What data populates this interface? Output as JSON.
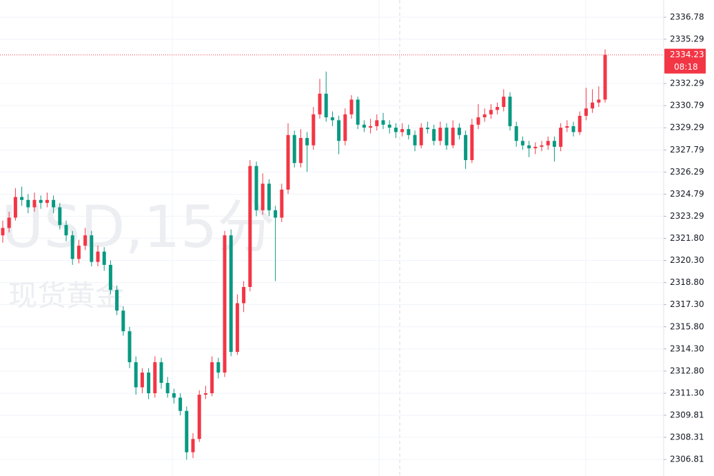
{
  "chart_data": {
    "type": "candlestick",
    "watermark": "USD,15分",
    "watermark_subtitle": "现货黄金",
    "up_color": "#f23645",
    "down_color": "#089981",
    "ylim": [
      2305.69,
      2337.95
    ],
    "yticks": [
      2336.78,
      2335.29,
      2332.29,
      2330.79,
      2329.29,
      2327.79,
      2326.29,
      2324.79,
      2323.29,
      {
        "value": 2321.8,
        "label": "2321.80"
      },
      {
        "value": 2320.3,
        "label": "2320.30"
      },
      {
        "value": 2318.8,
        "label": "2318.80"
      },
      {
        "value": 2317.3,
        "label": "2317.30"
      },
      {
        "value": 2315.8,
        "label": "2315.80"
      },
      {
        "value": 2314.3,
        "label": "2314.30"
      },
      {
        "value": 2312.8,
        "label": "2312.80"
      },
      {
        "value": 2311.3,
        "label": "2311.30"
      },
      2309.81,
      2308.31,
      2306.81
    ],
    "grid": true,
    "last_price": 2334.23,
    "countdown": "08:18",
    "ohlc": [
      [
        2322.0,
        2323.0,
        2321.5,
        2322.5
      ],
      [
        2322.5,
        2323.6,
        2322.2,
        2323.2
      ],
      [
        2323.2,
        2325.2,
        2323.0,
        2324.6
      ],
      [
        2324.6,
        2325.3,
        2324.0,
        2324.4
      ],
      [
        2324.4,
        2324.8,
        2323.5,
        2323.9
      ],
      [
        2323.9,
        2324.9,
        2323.6,
        2324.4
      ],
      [
        2324.4,
        2324.7,
        2323.8,
        2324.2
      ],
      [
        2324.2,
        2324.9,
        2323.9,
        2324.4
      ],
      [
        2324.4,
        2324.7,
        2323.5,
        2323.9
      ],
      [
        2323.9,
        2324.2,
        2322.4,
        2322.7
      ],
      [
        2322.7,
        2323.0,
        2321.6,
        2322.0
      ],
      [
        2322.0,
        2322.3,
        2320.0,
        2320.4
      ],
      [
        2320.4,
        2321.7,
        2320.1,
        2321.3
      ],
      [
        2321.3,
        2322.5,
        2321.0,
        2322.0
      ],
      [
        2322.0,
        2322.3,
        2319.9,
        2320.2
      ],
      [
        2320.2,
        2321.3,
        2319.9,
        2320.9
      ],
      [
        2320.9,
        2321.2,
        2319.6,
        2320.0
      ],
      [
        2320.0,
        2320.3,
        2318.0,
        2318.3
      ],
      [
        2318.3,
        2318.6,
        2316.6,
        2316.9
      ],
      [
        2316.9,
        2317.2,
        2315.2,
        2315.5
      ],
      [
        2315.5,
        2315.8,
        2313.0,
        2313.4
      ],
      [
        2313.4,
        2313.8,
        2311.2,
        2311.7
      ],
      [
        2311.7,
        2313.0,
        2311.3,
        2312.7
      ],
      [
        2312.7,
        2313.0,
        2310.9,
        2311.3
      ],
      [
        2311.3,
        2313.8,
        2311.0,
        2313.4
      ],
      [
        2313.4,
        2313.7,
        2311.6,
        2312.0
      ],
      [
        2312.0,
        2312.4,
        2311.0,
        2311.3
      ],
      [
        2311.3,
        2311.6,
        2310.6,
        2311.0
      ],
      [
        2311.0,
        2311.3,
        2309.8,
        2310.1
      ],
      [
        2310.1,
        2310.4,
        2306.8,
        2307.3
      ],
      [
        2307.3,
        2308.6,
        2306.9,
        2308.2
      ],
      [
        2308.2,
        2311.5,
        2308.0,
        2311.2
      ],
      [
        2311.2,
        2311.8,
        2310.9,
        2311.3
      ],
      [
        2311.3,
        2313.8,
        2311.1,
        2313.4
      ],
      [
        2313.4,
        2313.7,
        2312.3,
        2312.7
      ],
      [
        2312.7,
        2322.3,
        2312.4,
        2322.0
      ],
      [
        2322.0,
        2322.4,
        2313.8,
        2314.1
      ],
      [
        2314.1,
        2318.0,
        2313.9,
        2317.4
      ],
      [
        2317.4,
        2318.9,
        2316.8,
        2318.5
      ],
      [
        2318.5,
        2327.1,
        2318.2,
        2326.7
      ],
      [
        2326.7,
        2327.0,
        2323.3,
        2323.7
      ],
      [
        2323.7,
        2326.2,
        2323.4,
        2325.5
      ],
      [
        2325.5,
        2325.8,
        2323.3,
        2323.7
      ],
      [
        2323.7,
        2324.0,
        2318.9,
        2323.2
      ],
      [
        2323.2,
        2325.5,
        2322.9,
        2325.1
      ],
      [
        2325.1,
        2329.6,
        2324.8,
        2328.8
      ],
      [
        2328.8,
        2329.1,
        2326.6,
        2326.9
      ],
      [
        2326.9,
        2329.2,
        2326.6,
        2328.6
      ],
      [
        2328.6,
        2329.0,
        2326.3,
        2328.1
      ],
      [
        2328.1,
        2330.7,
        2327.8,
        2330.2
      ],
      [
        2330.2,
        2332.6,
        2329.9,
        2331.6
      ],
      [
        2331.6,
        2333.1,
        2329.7,
        2330.0
      ],
      [
        2330.0,
        2330.4,
        2329.4,
        2329.8
      ],
      [
        2329.8,
        2330.1,
        2327.5,
        2328.4
      ],
      [
        2328.4,
        2330.6,
        2328.1,
        2330.2
      ],
      [
        2330.2,
        2331.5,
        2329.9,
        2331.2
      ],
      [
        2331.2,
        2331.4,
        2329.2,
        2329.5
      ],
      [
        2329.5,
        2329.8,
        2329.0,
        2329.3
      ],
      [
        2329.3,
        2329.9,
        2328.9,
        2329.4
      ],
      [
        2329.4,
        2330.2,
        2329.1,
        2329.8
      ],
      [
        2329.8,
        2330.3,
        2329.2,
        2329.5
      ],
      [
        2329.5,
        2329.8,
        2328.9,
        2329.3
      ],
      [
        2329.3,
        2329.6,
        2328.6,
        2329.0
      ],
      [
        2329.0,
        2329.6,
        2328.7,
        2329.2
      ],
      [
        2329.2,
        2329.5,
        2328.5,
        2328.8
      ],
      [
        2328.8,
        2329.1,
        2327.7,
        2328.1
      ],
      [
        2328.1,
        2329.6,
        2327.9,
        2329.3
      ],
      [
        2329.3,
        2329.7,
        2328.9,
        2329.2
      ],
      [
        2329.2,
        2329.5,
        2328.1,
        2328.4
      ],
      [
        2328.4,
        2329.7,
        2328.1,
        2329.3
      ],
      [
        2329.3,
        2329.6,
        2327.8,
        2328.1
      ],
      [
        2328.1,
        2329.8,
        2327.9,
        2329.3
      ],
      [
        2329.3,
        2329.6,
        2328.5,
        2328.8
      ],
      [
        2328.8,
        2329.1,
        2326.5,
        2327.1
      ],
      [
        2327.1,
        2329.9,
        2326.9,
        2329.5
      ],
      [
        2329.5,
        2330.9,
        2329.2,
        2330.0
      ],
      [
        2330.0,
        2330.6,
        2329.7,
        2330.2
      ],
      [
        2330.2,
        2330.9,
        2329.9,
        2330.5
      ],
      [
        2330.5,
        2331.0,
        2330.2,
        2330.7
      ],
      [
        2330.7,
        2331.9,
        2330.4,
        2331.4
      ],
      [
        2331.4,
        2331.7,
        2329.1,
        2329.4
      ],
      [
        2329.4,
        2329.7,
        2328.0,
        2328.4
      ],
      [
        2328.4,
        2328.7,
        2327.8,
        2328.1
      ],
      [
        2328.1,
        2328.4,
        2327.3,
        2327.9
      ],
      [
        2327.9,
        2328.3,
        2327.5,
        2328.0
      ],
      [
        2328.0,
        2328.4,
        2327.7,
        2328.1
      ],
      [
        2328.1,
        2328.7,
        2327.8,
        2328.4
      ],
      [
        2328.4,
        2328.7,
        2327.0,
        2328.0
      ],
      [
        2328.0,
        2329.6,
        2327.7,
        2329.3
      ],
      [
        2329.3,
        2329.8,
        2329.0,
        2329.4
      ],
      [
        2329.4,
        2329.7,
        2328.7,
        2329.0
      ],
      [
        2329.0,
        2330.4,
        2328.8,
        2330.1
      ],
      [
        2330.1,
        2332.0,
        2329.8,
        2330.6
      ],
      [
        2330.6,
        2331.9,
        2330.3,
        2331.0
      ],
      [
        2331.0,
        2332.1,
        2330.7,
        2331.2
      ],
      [
        2331.2,
        2334.6,
        2331.0,
        2334.23
      ]
    ]
  }
}
